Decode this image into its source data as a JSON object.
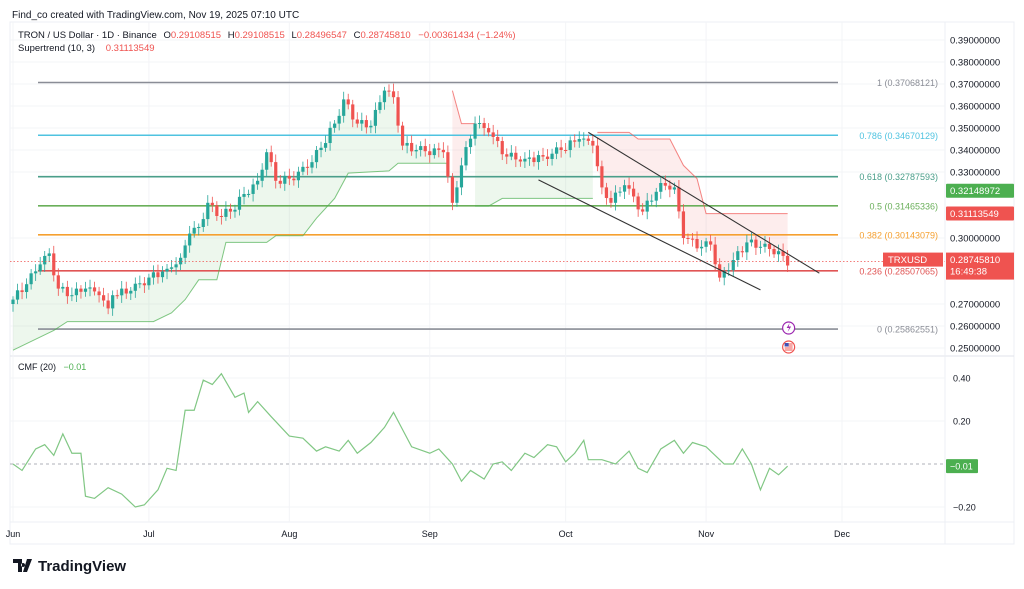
{
  "header": {
    "credit": "Find_co created with TradingView.com, Nov 19, 2025 07:10 UTC",
    "symbol": "TRON / US Dollar · 1D · Binance",
    "open_label": "O",
    "open": "0.29108515",
    "high_label": "H",
    "high": "0.29108515",
    "low_label": "L",
    "low": "0.28496547",
    "close_label": "C",
    "close": "0.28745810",
    "change": "−0.00361434 (−1.24%)",
    "indicator": "Supertrend (10, 3)",
    "indicator_value": "0.31113549"
  },
  "cmf_header": {
    "label": "CMF (20)",
    "value": "−0.01"
  },
  "branding": {
    "logo_text": "TradingView"
  },
  "colors": {
    "up": "#26a69a",
    "down": "#ef5350",
    "st_up": "#4caf50",
    "st_down": "#ef5350",
    "cmf": "#81c784",
    "text": "#131722"
  },
  "icons": [
    "lightning-event-icon",
    "us-flag-event-icon",
    "tradingview-logo-icon"
  ],
  "chart_data": [
    {
      "type": "candlestick",
      "title": "TRON / US Dollar · 1D · Binance",
      "x_ticks": [
        {
          "date": "2025-06-01",
          "label": "Jun"
        },
        {
          "date": "2025-07-01",
          "label": "Jul"
        },
        {
          "date": "2025-08-01",
          "label": "Aug"
        },
        {
          "date": "2025-09-01",
          "label": "Sep"
        },
        {
          "date": "2025-10-01",
          "label": "Oct"
        },
        {
          "date": "2025-11-01",
          "label": "Nov"
        },
        {
          "date": "2025-12-01",
          "label": "Dec"
        }
      ],
      "y_ticks": [
        "0.39000000",
        "0.38000000",
        "0.37000000",
        "0.36000000",
        "0.35000000",
        "0.34000000",
        "0.33000000",
        "0.30000000",
        "0.27000000",
        "0.26000000",
        "0.25000000"
      ],
      "ylim": [
        0.25,
        0.39
      ],
      "grid": true,
      "close_keypoints": [
        [
          "2025-06-01",
          0.272
        ],
        [
          "2025-06-04",
          0.279
        ],
        [
          "2025-06-07",
          0.288
        ],
        [
          "2025-06-09",
          0.293
        ],
        [
          "2025-06-11",
          0.277
        ],
        [
          "2025-06-14",
          0.274
        ],
        [
          "2025-06-17",
          0.277
        ],
        [
          "2025-06-20",
          0.274
        ],
        [
          "2025-06-22",
          0.268
        ],
        [
          "2025-06-23",
          0.274
        ],
        [
          "2025-06-27",
          0.276
        ],
        [
          "2025-07-01",
          0.282
        ],
        [
          "2025-07-05",
          0.286
        ],
        [
          "2025-07-08",
          0.291
        ],
        [
          "2025-07-10",
          0.302
        ],
        [
          "2025-07-12",
          0.305
        ],
        [
          "2025-07-14",
          0.316
        ],
        [
          "2025-07-16",
          0.31
        ],
        [
          "2025-07-19",
          0.312
        ],
        [
          "2025-07-22",
          0.32
        ],
        [
          "2025-07-25",
          0.326
        ],
        [
          "2025-07-27",
          0.339
        ],
        [
          "2025-07-29",
          0.326
        ],
        [
          "2025-08-01",
          0.327
        ],
        [
          "2025-08-05",
          0.332
        ],
        [
          "2025-08-08",
          0.341
        ],
        [
          "2025-08-11",
          0.352
        ],
        [
          "2025-08-13",
          0.363
        ],
        [
          "2025-08-16",
          0.352
        ],
        [
          "2025-08-19",
          0.351
        ],
        [
          "2025-08-22",
          0.367
        ],
        [
          "2025-08-24",
          0.364
        ],
        [
          "2025-08-26",
          0.342
        ],
        [
          "2025-08-29",
          0.34
        ],
        [
          "2025-09-04",
          0.339
        ],
        [
          "2025-09-06",
          0.316
        ],
        [
          "2025-09-08",
          0.333
        ],
        [
          "2025-09-11",
          0.352
        ],
        [
          "2025-09-14",
          0.348
        ],
        [
          "2025-09-18",
          0.337
        ],
        [
          "2025-09-22",
          0.336
        ],
        [
          "2025-09-26",
          0.337
        ],
        [
          "2025-09-30",
          0.34
        ],
        [
          "2025-10-04",
          0.345
        ],
        [
          "2025-10-07",
          0.342
        ],
        [
          "2025-10-09",
          0.323
        ],
        [
          "2025-10-11",
          0.316
        ],
        [
          "2025-10-14",
          0.324
        ],
        [
          "2025-10-18",
          0.312
        ],
        [
          "2025-10-22",
          0.325
        ],
        [
          "2025-10-25",
          0.323
        ],
        [
          "2025-10-27",
          0.3
        ],
        [
          "2025-10-31",
          0.296
        ],
        [
          "2025-11-02",
          0.297
        ],
        [
          "2025-11-04",
          0.282
        ],
        [
          "2025-11-07",
          0.29
        ],
        [
          "2025-11-10",
          0.298
        ],
        [
          "2025-11-13",
          0.296
        ],
        [
          "2025-11-17",
          0.294
        ],
        [
          "2025-11-19",
          0.2875
        ]
      ],
      "supertrend": [
        {
          "trend": "up",
          "points": [
            [
              "2025-06-01",
              0.249
            ],
            [
              "2025-06-10",
              0.258
            ],
            [
              "2025-06-13",
              0.262
            ],
            [
              "2025-07-02",
              0.262
            ],
            [
              "2025-07-06",
              0.266
            ],
            [
              "2025-07-09",
              0.272
            ],
            [
              "2025-07-12",
              0.281
            ],
            [
              "2025-07-16",
              0.281
            ],
            [
              "2025-07-18",
              0.298
            ],
            [
              "2025-07-27",
              0.298
            ],
            [
              "2025-07-29",
              0.301
            ],
            [
              "2025-08-04",
              0.301
            ],
            [
              "2025-08-07",
              0.309
            ],
            [
              "2025-08-11",
              0.318
            ],
            [
              "2025-08-14",
              0.3295
            ],
            [
              "2025-08-23",
              0.3305
            ],
            [
              "2025-08-25",
              0.334
            ],
            [
              "2025-09-05",
              0.334
            ]
          ]
        },
        {
          "trend": "down",
          "points": [
            [
              "2025-09-06",
              0.367
            ],
            [
              "2025-09-08",
              0.352
            ],
            [
              "2025-09-11",
              0.352
            ]
          ]
        },
        {
          "trend": "up",
          "points": [
            [
              "2025-09-11",
              0.3145
            ],
            [
              "2025-09-14",
              0.3145
            ],
            [
              "2025-09-17",
              0.318
            ],
            [
              "2025-10-07",
              0.318
            ]
          ]
        },
        {
          "trend": "down",
          "points": [
            [
              "2025-10-08",
              0.348
            ],
            [
              "2025-10-15",
              0.348
            ],
            [
              "2025-10-17",
              0.345
            ],
            [
              "2025-10-24",
              0.345
            ],
            [
              "2025-10-27",
              0.333
            ],
            [
              "2025-10-30",
              0.327
            ],
            [
              "2025-11-01",
              0.3111
            ],
            [
              "2025-11-19",
              0.3111
            ]
          ]
        }
      ],
      "fibonacci": {
        "start_date": "2025-06-07",
        "end_date": "2025-11-28",
        "levels": [
          {
            "label": "1 (0.37068121)",
            "price": 0.37068121,
            "color": "#8a8d96"
          },
          {
            "label": "0.786 (0.34670129)",
            "price": 0.34670129,
            "color": "#4fc3e0"
          },
          {
            "label": "0.618 (0.32787593)",
            "price": 0.32787593,
            "color": "#4a9e8a"
          },
          {
            "label": "0.5 (0.31465336)",
            "price": 0.31465336,
            "color": "#6aaf5a"
          },
          {
            "label": "0.382 (0.30143079)",
            "price": 0.30143079,
            "color": "#f5a030"
          },
          {
            "label": "0.236 (0.28507065)",
            "price": 0.28507065,
            "color": "#e05555"
          },
          {
            "label": "0 (0.25862551)",
            "price": 0.25862551,
            "color": "#8a8d96"
          }
        ]
      },
      "trendlines": [
        [
          [
            "2025-10-06",
            0.348
          ],
          [
            "2025-11-26",
            0.284
          ]
        ],
        [
          [
            "2025-09-25",
            0.3264
          ],
          [
            "2025-11-13",
            0.2764
          ]
        ]
      ],
      "price_badges": [
        {
          "value": "0.32148972",
          "price": 0.32148972,
          "color": "#4caf50"
        },
        {
          "value": "0.31113549",
          "price": 0.31113549,
          "color": "#ef5350"
        }
      ],
      "last_price": {
        "symbol": "TRXUSD",
        "value": "0.28745810",
        "price": 0.2874581,
        "countdown": "16:49:38",
        "color": "#ef5350"
      },
      "events_date": "2025-11-19"
    },
    {
      "type": "line",
      "title": "CMF (20)",
      "y_ticks": [
        {
          "value": 0.4,
          "label": "0.40"
        },
        {
          "value": 0.2,
          "label": "0.20"
        },
        {
          "value": -0.2,
          "label": "−0.20"
        }
      ],
      "zero_line": true,
      "last_badge": "−0.01",
      "points": [
        [
          "2025-06-01",
          0.0
        ],
        [
          "2025-06-03",
          -0.03
        ],
        [
          "2025-06-06",
          0.07
        ],
        [
          "2025-06-08",
          0.09
        ],
        [
          "2025-06-10",
          0.04
        ],
        [
          "2025-06-12",
          0.14
        ],
        [
          "2025-06-14",
          0.05
        ],
        [
          "2025-06-16",
          0.05
        ],
        [
          "2025-06-17",
          -0.15
        ],
        [
          "2025-06-19",
          -0.16
        ],
        [
          "2025-06-22",
          -0.11
        ],
        [
          "2025-06-25",
          -0.14
        ],
        [
          "2025-06-28",
          -0.2
        ],
        [
          "2025-06-30",
          -0.19
        ],
        [
          "2025-07-03",
          -0.12
        ],
        [
          "2025-07-05",
          -0.02
        ],
        [
          "2025-07-07",
          -0.03
        ],
        [
          "2025-07-09",
          0.25
        ],
        [
          "2025-07-11",
          0.25
        ],
        [
          "2025-07-13",
          0.39
        ],
        [
          "2025-07-15",
          0.37
        ],
        [
          "2025-07-17",
          0.42
        ],
        [
          "2025-07-20",
          0.31
        ],
        [
          "2025-07-22",
          0.33
        ],
        [
          "2025-07-23",
          0.24
        ],
        [
          "2025-07-25",
          0.29
        ],
        [
          "2025-07-28",
          0.22
        ],
        [
          "2025-08-01",
          0.13
        ],
        [
          "2025-08-04",
          0.12
        ],
        [
          "2025-08-07",
          0.06
        ],
        [
          "2025-08-09",
          0.08
        ],
        [
          "2025-08-12",
          0.06
        ],
        [
          "2025-08-14",
          0.11
        ],
        [
          "2025-08-16",
          0.05
        ],
        [
          "2025-08-19",
          0.1
        ],
        [
          "2025-08-22",
          0.17
        ],
        [
          "2025-08-24",
          0.24
        ],
        [
          "2025-08-26",
          0.16
        ],
        [
          "2025-08-28",
          0.08
        ],
        [
          "2025-09-01",
          0.05
        ],
        [
          "2025-09-03",
          0.07
        ],
        [
          "2025-09-06",
          0.0
        ],
        [
          "2025-09-08",
          -0.08
        ],
        [
          "2025-09-10",
          -0.03
        ],
        [
          "2025-09-13",
          -0.07
        ],
        [
          "2025-09-15",
          0.0
        ],
        [
          "2025-09-17",
          0.01
        ],
        [
          "2025-09-19",
          -0.03
        ],
        [
          "2025-09-22",
          0.05
        ],
        [
          "2025-09-24",
          0.03
        ],
        [
          "2025-09-27",
          0.09
        ],
        [
          "2025-09-29",
          0.08
        ],
        [
          "2025-10-01",
          0.01
        ],
        [
          "2025-10-03",
          0.05
        ],
        [
          "2025-10-05",
          0.11
        ],
        [
          "2025-10-06",
          0.02
        ],
        [
          "2025-10-09",
          0.02
        ],
        [
          "2025-10-12",
          0.0
        ],
        [
          "2025-10-15",
          0.06
        ],
        [
          "2025-10-17",
          -0.02
        ],
        [
          "2025-10-19",
          -0.04
        ],
        [
          "2025-10-22",
          0.07
        ],
        [
          "2025-10-25",
          0.11
        ],
        [
          "2025-10-27",
          0.05
        ],
        [
          "2025-10-29",
          0.1
        ],
        [
          "2025-11-01",
          0.08
        ],
        [
          "2025-11-05",
          0.0
        ],
        [
          "2025-11-07",
          0.0
        ],
        [
          "2025-11-09",
          0.07
        ],
        [
          "2025-11-11",
          0.0
        ],
        [
          "2025-11-13",
          -0.12
        ],
        [
          "2025-11-15",
          -0.02
        ],
        [
          "2025-11-17",
          -0.05
        ],
        [
          "2025-11-19",
          -0.01
        ]
      ]
    }
  ]
}
